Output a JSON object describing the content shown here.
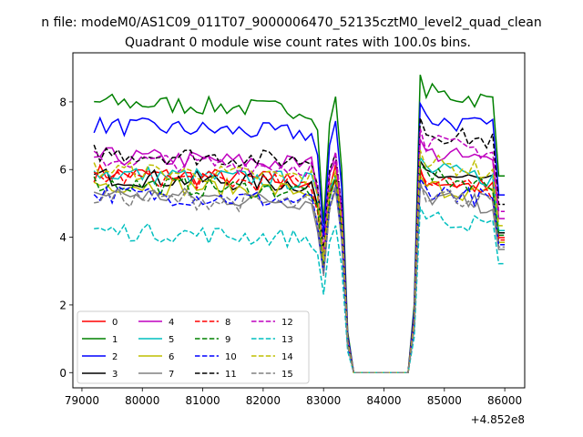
{
  "figure": {
    "suptitle": "n file: modeM0/AS1C09_011T07_9000006470_52135cztM0_level2_quad_clean"
  },
  "chart_data": {
    "type": "line",
    "title": "Quadrant 0 module wise count rates with 100.0s bins.",
    "xlabel": "",
    "ylabel": "",
    "x_offset_label": "+4.852e8",
    "xlim": [
      78850,
      86330
    ],
    "ylim": [
      -0.45,
      9.45
    ],
    "x_ticks": [
      79000,
      80000,
      81000,
      82000,
      83000,
      84000,
      85000,
      86000
    ],
    "x_tick_labels": [
      "79000",
      "80000",
      "81000",
      "82000",
      "83000",
      "84000",
      "85000",
      "86000"
    ],
    "y_ticks": [
      0,
      2,
      4,
      6,
      8
    ],
    "y_tick_labels": [
      "0",
      "2",
      "4",
      "6",
      "8"
    ],
    "grid": false,
    "legend": {
      "placement": "lower-left",
      "columns": 4
    },
    "series": [
      {
        "name": "0",
        "color": "#ff0000",
        "dash": "solid",
        "base": 5.9,
        "after": 5.7
      },
      {
        "name": "1",
        "color": "#008000",
        "dash": "solid",
        "base": 8.0,
        "after": 8.3
      },
      {
        "name": "2",
        "color": "#0000ff",
        "dash": "solid",
        "base": 7.3,
        "after": 7.5
      },
      {
        "name": "3",
        "color": "#000000",
        "dash": "solid",
        "base": 5.8,
        "after": 5.9
      },
      {
        "name": "4",
        "color": "#bf00bf",
        "dash": "solid",
        "base": 6.4,
        "after": 6.5
      },
      {
        "name": "5",
        "color": "#00bfbf",
        "dash": "solid",
        "base": 5.9,
        "after": 6.0
      },
      {
        "name": "6",
        "color": "#bfbf00",
        "dash": "solid",
        "base": 5.6,
        "after": 5.5
      },
      {
        "name": "7",
        "color": "#808080",
        "dash": "solid",
        "base": 5.3,
        "after": 5.2
      },
      {
        "name": "8",
        "color": "#ff0000",
        "dash": "dashed",
        "base": 5.8,
        "after": 5.6
      },
      {
        "name": "9",
        "color": "#008000",
        "dash": "dashed",
        "base": 5.6,
        "after": 5.8
      },
      {
        "name": "10",
        "color": "#0000ff",
        "dash": "dashed",
        "base": 5.3,
        "after": 5.4
      },
      {
        "name": "11",
        "color": "#000000",
        "dash": "dashed",
        "base": 6.5,
        "after": 7.1
      },
      {
        "name": "12",
        "color": "#bf00bf",
        "dash": "dashed",
        "base": 6.3,
        "after": 6.8
      },
      {
        "name": "13",
        "color": "#00bfbf",
        "dash": "dashed",
        "base": 4.2,
        "after": 4.6
      },
      {
        "name": "14",
        "color": "#bfbf00",
        "dash": "dashed",
        "base": 6.0,
        "after": 6.2
      },
      {
        "name": "15",
        "color": "#808080",
        "dash": "dashed",
        "base": 5.2,
        "after": 5.3
      }
    ]
  }
}
